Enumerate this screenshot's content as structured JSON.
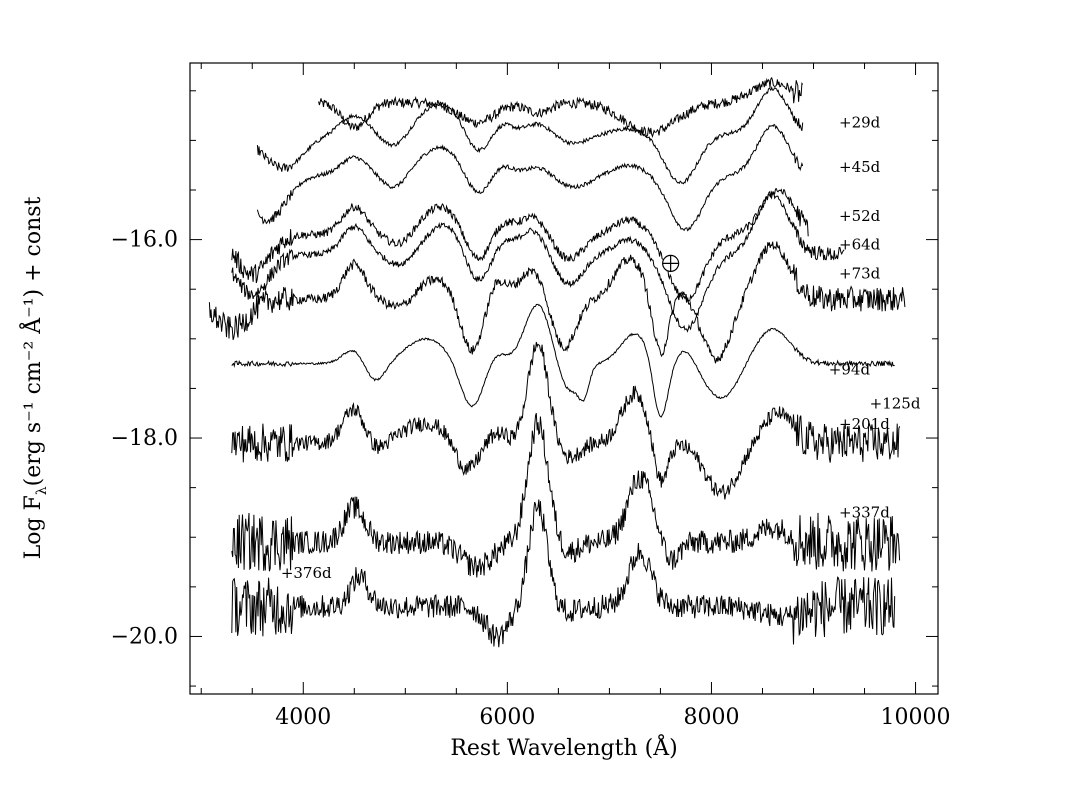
{
  "chart_data": {
    "type": "line",
    "title": "",
    "xlabel": "Rest Wavelength (Å)",
    "ylabel": "Log F",
    "ylabel_sub": "λ",
    "ylabel_tail": "(erg s⁻¹ cm⁻² Å⁻¹) + const",
    "xlim": [
      2890,
      10220
    ],
    "ylim": [
      -20.58,
      -14.22
    ],
    "x_ticks": [
      4000,
      6000,
      8000,
      10000
    ],
    "x_tick_labels": [
      "4000",
      "6000",
      "8000",
      "10000"
    ],
    "y_ticks": [
      -16.0,
      -18.0,
      -20.0
    ],
    "y_tick_labels": [
      "−16.0",
      "−18.0",
      "−20.0"
    ],
    "earth_symbol": {
      "label": "⊕",
      "wavelength": 7600,
      "log_flux": -16.24
    },
    "series": [
      {
        "name": "+29d",
        "x_range": [
          4150,
          8900
        ],
        "offset": -14.62,
        "noise": 0.05,
        "label_x": 9250,
        "label_y": -14.87,
        "features": [
          [
            4500,
            -0.25,
            120
          ],
          [
            5700,
            -0.2,
            180
          ],
          [
            6300,
            -0.1,
            120
          ],
          [
            7400,
            -0.3,
            250
          ],
          [
            8600,
            0.2,
            200
          ]
        ]
      },
      {
        "name": "+45d",
        "x_range": [
          3550,
          8900
        ],
        "offset": -14.93,
        "noise": 0.02,
        "label_x": 9250,
        "label_y": -15.32,
        "features": [
          [
            3800,
            -0.35,
            200
          ],
          [
            4500,
            0.18,
            130
          ],
          [
            4900,
            -0.15,
            120
          ],
          [
            5350,
            0.3,
            220
          ],
          [
            5700,
            -0.25,
            120
          ],
          [
            5950,
            0.1,
            100
          ],
          [
            6300,
            0.1,
            120
          ],
          [
            6650,
            -0.1,
            150
          ],
          [
            7200,
            0.05,
            150
          ],
          [
            7700,
            -0.5,
            160
          ],
          [
            8600,
            0.45,
            150
          ]
        ]
      },
      {
        "name": "+52d",
        "x_range": [
          3550,
          8900
        ],
        "offset": -15.35,
        "noise": 0.02,
        "label_x": 9250,
        "label_y": -15.81,
        "features": [
          [
            3650,
            -0.45,
            180
          ],
          [
            4500,
            0.18,
            130
          ],
          [
            4900,
            -0.15,
            120
          ],
          [
            5350,
            0.28,
            220
          ],
          [
            5700,
            -0.25,
            120
          ],
          [
            5950,
            0.1,
            100
          ],
          [
            6300,
            0.08,
            120
          ],
          [
            6650,
            -0.12,
            150
          ],
          [
            7200,
            0.1,
            150
          ],
          [
            7750,
            -0.55,
            160
          ],
          [
            8600,
            0.5,
            150
          ]
        ]
      },
      {
        "name": "+64d",
        "x_range": [
          3300,
          8950
        ],
        "offset": -15.95,
        "noise": 0.04,
        "label_x": 9250,
        "label_y": -16.1,
        "features": [
          [
            3500,
            -0.4,
            160
          ],
          [
            4500,
            0.28,
            120
          ],
          [
            4950,
            -0.12,
            120
          ],
          [
            5350,
            0.28,
            200
          ],
          [
            5700,
            -0.3,
            120
          ],
          [
            5950,
            0.12,
            100
          ],
          [
            6250,
            0.18,
            130
          ],
          [
            6600,
            -0.25,
            140
          ],
          [
            7200,
            0.15,
            150
          ],
          [
            7750,
            -0.65,
            170
          ],
          [
            8650,
            0.45,
            160
          ]
        ]
      },
      {
        "name": "+73d",
        "x_range": [
          3300,
          9300
        ],
        "offset": -16.15,
        "noise": 0.03,
        "label_x": 9250,
        "label_y": -16.39,
        "features": [
          [
            3500,
            -0.4,
            160
          ],
          [
            4500,
            0.28,
            120
          ],
          [
            4950,
            -0.12,
            120
          ],
          [
            5400,
            0.3,
            200
          ],
          [
            5700,
            -0.35,
            120
          ],
          [
            5950,
            0.12,
            100
          ],
          [
            6250,
            0.25,
            130
          ],
          [
            6600,
            -0.3,
            140
          ],
          [
            7200,
            0.15,
            150
          ],
          [
            7750,
            -0.75,
            170
          ],
          [
            8600,
            0.6,
            160
          ]
        ]
      },
      {
        "name": "+94d",
        "x_range": [
          3080,
          9900
        ],
        "offset": -16.6,
        "noise": 0.05,
        "label_x": 9150,
        "label_y": -17.36,
        "features": [
          [
            3300,
            -0.3,
            160
          ],
          [
            4500,
            0.35,
            110
          ],
          [
            4950,
            -0.1,
            120
          ],
          [
            5300,
            0.2,
            180
          ],
          [
            5650,
            -0.55,
            110
          ],
          [
            5900,
            0.2,
            90
          ],
          [
            6250,
            0.3,
            130
          ],
          [
            6550,
            -0.5,
            120
          ],
          [
            7200,
            0.4,
            150
          ],
          [
            7500,
            -0.6,
            80
          ],
          [
            7700,
            0.1,
            90
          ],
          [
            8050,
            -0.6,
            140
          ],
          [
            8600,
            0.55,
            160
          ]
        ]
      },
      {
        "name": "+125d",
        "x_range": [
          3300,
          9800
        ],
        "offset": -17.25,
        "noise": 0.01,
        "label_x": 9550,
        "label_y": -17.7,
        "features": [
          [
            4500,
            0.15,
            110
          ],
          [
            4700,
            -0.2,
            100
          ],
          [
            5200,
            0.25,
            200
          ],
          [
            5650,
            -0.45,
            110
          ],
          [
            5900,
            0.1,
            90
          ],
          [
            6300,
            0.6,
            130
          ],
          [
            6600,
            -0.3,
            110
          ],
          [
            6750,
            -0.25,
            50
          ],
          [
            7250,
            0.3,
            140
          ],
          [
            7500,
            -0.6,
            70
          ],
          [
            7750,
            0.15,
            90
          ],
          [
            8100,
            -0.35,
            160
          ],
          [
            8600,
            0.35,
            170
          ]
        ]
      },
      {
        "name": "+201d",
        "x_range": [
          3300,
          9850
        ],
        "offset": -18.05,
        "noise": 0.08,
        "label_x": 9250,
        "label_y": -17.91,
        "features": [
          [
            4500,
            0.35,
            110
          ],
          [
            4700,
            -0.1,
            100
          ],
          [
            5200,
            0.2,
            220
          ],
          [
            5600,
            -0.3,
            110
          ],
          [
            5900,
            0.1,
            90
          ],
          [
            6300,
            1.0,
            100
          ],
          [
            6600,
            -0.15,
            110
          ],
          [
            7250,
            0.5,
            130
          ],
          [
            7500,
            -0.45,
            70
          ],
          [
            8100,
            -0.5,
            160
          ],
          [
            8650,
            0.3,
            140
          ]
        ]
      },
      {
        "name": "+337d",
        "x_range": [
          3300,
          9850
        ],
        "offset": -19.05,
        "noise": 0.12,
        "label_x": 9250,
        "label_y": -18.8,
        "features": [
          [
            4500,
            0.35,
            100
          ],
          [
            5700,
            -0.25,
            150
          ],
          [
            6300,
            1.2,
            100
          ],
          [
            6600,
            -0.1,
            100
          ],
          [
            7300,
            0.65,
            120
          ],
          [
            7600,
            -0.2,
            80
          ],
          [
            8600,
            0.15,
            150
          ]
        ]
      },
      {
        "name": "+376d",
        "x_range": [
          3300,
          9800
        ],
        "offset": -19.7,
        "noise": 0.12,
        "label_x": 3780,
        "label_y": -19.41,
        "features": [
          [
            4550,
            0.3,
            90
          ],
          [
            5900,
            -0.3,
            110
          ],
          [
            6300,
            1.0,
            90
          ],
          [
            6600,
            -0.05,
            100
          ],
          [
            7300,
            0.55,
            110
          ],
          [
            8700,
            -0.1,
            200
          ]
        ]
      }
    ]
  }
}
